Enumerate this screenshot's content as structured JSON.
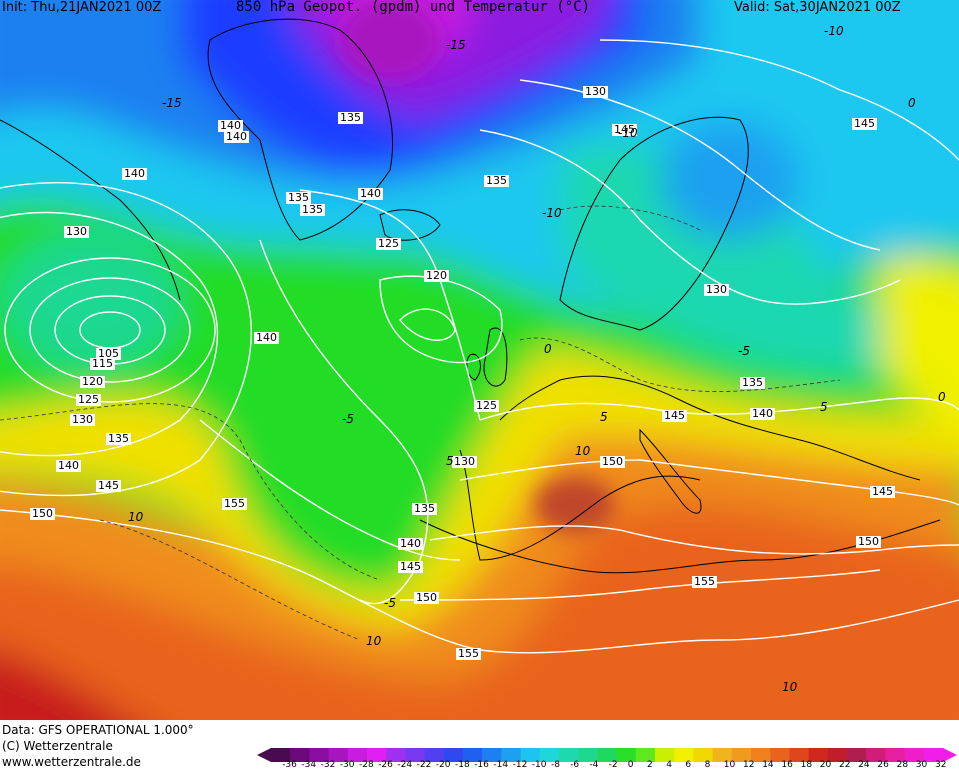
{
  "header": {
    "init": "Init: Thu,21JAN2021 00Z",
    "title": "850 hPa Geopot. (gpdm) und Temperatur (°C)",
    "valid": "Valid: Sat,30JAN2021 00Z"
  },
  "footer": {
    "data_line": "Data: GFS OPERATIONAL 1.000°",
    "copyright": "(C) Wetterzentrale",
    "url": "www.wetterzentrale.de"
  },
  "colors": {
    "cold_extreme": "#5a0a6e",
    "purple": "#8c1ee0",
    "blue": "#1e3cff",
    "cyan": "#1ec8f0",
    "teal": "#18d2b4",
    "green": "#20dc28",
    "yellow": "#f0f000",
    "orange": "#f08c1e",
    "red_orange": "#e0501e",
    "red": "#c81e1e",
    "contour_line": "#ffffff",
    "coastline": "#000000"
  },
  "contour_labels": [
    {
      "text": "140",
      "id": "g1"
    },
    {
      "text": "140",
      "id": "g2"
    },
    {
      "text": "135",
      "id": "g3"
    },
    {
      "text": "135",
      "id": "g4"
    },
    {
      "text": "140",
      "id": "g5"
    },
    {
      "text": "135",
      "id": "g6"
    },
    {
      "text": "130",
      "id": "g7"
    },
    {
      "text": "145",
      "id": "g8"
    },
    {
      "text": "125",
      "id": "g9"
    },
    {
      "text": "120",
      "id": "g10"
    },
    {
      "text": "130",
      "id": "g11"
    },
    {
      "text": "130",
      "id": "g12"
    },
    {
      "text": "105",
      "id": "g13"
    },
    {
      "text": "115",
      "id": "g14"
    },
    {
      "text": "120",
      "id": "g15"
    },
    {
      "text": "125",
      "id": "g16"
    },
    {
      "text": "130",
      "id": "g17"
    },
    {
      "text": "135",
      "id": "g18"
    },
    {
      "text": "140",
      "id": "g19"
    },
    {
      "text": "145",
      "id": "g20"
    },
    {
      "text": "150",
      "id": "g21"
    },
    {
      "text": "140",
      "id": "g22"
    },
    {
      "text": "125",
      "id": "g23"
    },
    {
      "text": "135",
      "id": "g24"
    },
    {
      "text": "140",
      "id": "g25"
    },
    {
      "text": "145",
      "id": "g26"
    },
    {
      "text": "130",
      "id": "g27"
    },
    {
      "text": "150",
      "id": "g28"
    },
    {
      "text": "155",
      "id": "g29"
    },
    {
      "text": "135",
      "id": "g30"
    },
    {
      "text": "140",
      "id": "g31"
    },
    {
      "text": "145",
      "id": "g32"
    },
    {
      "text": "150",
      "id": "g33"
    },
    {
      "text": "155",
      "id": "g34"
    },
    {
      "text": "155",
      "id": "g35"
    },
    {
      "text": "145",
      "id": "g36"
    },
    {
      "text": "150",
      "id": "g37"
    },
    {
      "text": "145",
      "id": "g38"
    },
    {
      "text": "140",
      "id": "g39"
    },
    {
      "text": "135",
      "id": "g40"
    }
  ],
  "temperature_labels": [
    {
      "text": "-15"
    },
    {
      "text": "-15"
    },
    {
      "text": "-10"
    },
    {
      "text": "-10"
    },
    {
      "text": "-10"
    },
    {
      "text": "-5"
    },
    {
      "text": "0"
    },
    {
      "text": "5"
    },
    {
      "text": "5"
    },
    {
      "text": "10"
    },
    {
      "text": "10"
    },
    {
      "text": "10"
    },
    {
      "text": "10"
    },
    {
      "text": "-5"
    },
    {
      "text": "0"
    },
    {
      "text": "5"
    },
    {
      "text": "-5"
    },
    {
      "text": "0"
    }
  ],
  "legend": {
    "ticks": [
      "-36",
      "-34",
      "-32",
      "-30",
      "-28",
      "-26",
      "-24",
      "-22",
      "-20",
      "-18",
      "-16",
      "-14",
      "-12",
      "-10",
      "-8",
      "-6",
      "-4",
      "-2",
      "0",
      "2",
      "4",
      "6",
      "8",
      "10",
      "12",
      "14",
      "16",
      "18",
      "20",
      "22",
      "24",
      "26",
      "28",
      "30",
      "32"
    ],
    "colors": [
      "#4a0a50",
      "#6a0a7a",
      "#8a0ea0",
      "#a814c0",
      "#c81ce0",
      "#e020f0",
      "#a030f0",
      "#7838f0",
      "#5040f0",
      "#3048f0",
      "#2060f0",
      "#1e80f0",
      "#1ea0f0",
      "#1ec4f0",
      "#1ed8d8",
      "#1ed8b0",
      "#1ed890",
      "#1ed860",
      "#28e028",
      "#60e81e",
      "#c8f000",
      "#f0f000",
      "#f0d800",
      "#f0b41e",
      "#f09a1e",
      "#f0801e",
      "#e8641e",
      "#e0461e",
      "#d0281e",
      "#c01e2a",
      "#b01e50",
      "#d01e78",
      "#e81ea0",
      "#f01ec8",
      "#f01ee8"
    ]
  }
}
